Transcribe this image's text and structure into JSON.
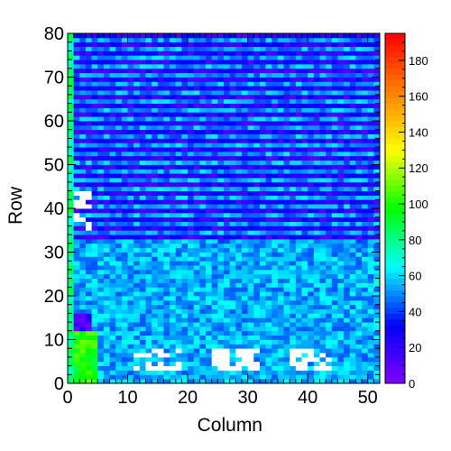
{
  "chart_data": {
    "type": "heatmap",
    "xlabel": "Column",
    "ylabel": "Row",
    "xlim": [
      0,
      52
    ],
    "ylim": [
      0,
      80
    ],
    "zlim": [
      0,
      195
    ],
    "x_ticks": [
      0,
      10,
      20,
      30,
      40,
      50
    ],
    "y_ticks": [
      0,
      10,
      20,
      30,
      40,
      50,
      60,
      70,
      80
    ],
    "z_ticks": [
      0,
      20,
      40,
      60,
      80,
      100,
      120,
      140,
      160,
      180
    ],
    "palette": [
      "#8000ff",
      "#0000ff",
      "#00ffff",
      "#00ff00",
      "#ffff00",
      "#ff8000",
      "#ff0000"
    ],
    "empty_color": "#ffffff",
    "grid": false,
    "legend": "right colorbar",
    "features": {
      "upper_rows": {
        "rows": [
          32,
          80
        ],
        "typical_value": 22,
        "stripe_value": 52,
        "stripe_period": 2
      },
      "lower_rows": {
        "rows": [
          0,
          32
        ],
        "typical_value": 55
      },
      "edge_columns": {
        "columns": [
          0,
          1
        ],
        "typical_value": 80
      },
      "left_hot_block": {
        "columns": [
          1,
          5
        ],
        "rows": [
          0,
          12
        ],
        "typical_value": 100
      },
      "left_low_block": {
        "columns": [
          1,
          4
        ],
        "rows": [
          12,
          16
        ],
        "typical_value": 15
      },
      "empty_regions": [
        {
          "columns": [
            1,
            4
          ],
          "rows": [
            35,
            39
          ]
        },
        {
          "columns": [
            1,
            4
          ],
          "rows": [
            40,
            44
          ]
        },
        {
          "columns": [
            11,
            19
          ],
          "rows": [
            3,
            8
          ]
        },
        {
          "columns": [
            24,
            32
          ],
          "rows": [
            3,
            8
          ]
        },
        {
          "columns": [
            37,
            44
          ],
          "rows": [
            3,
            8
          ]
        }
      ]
    }
  }
}
